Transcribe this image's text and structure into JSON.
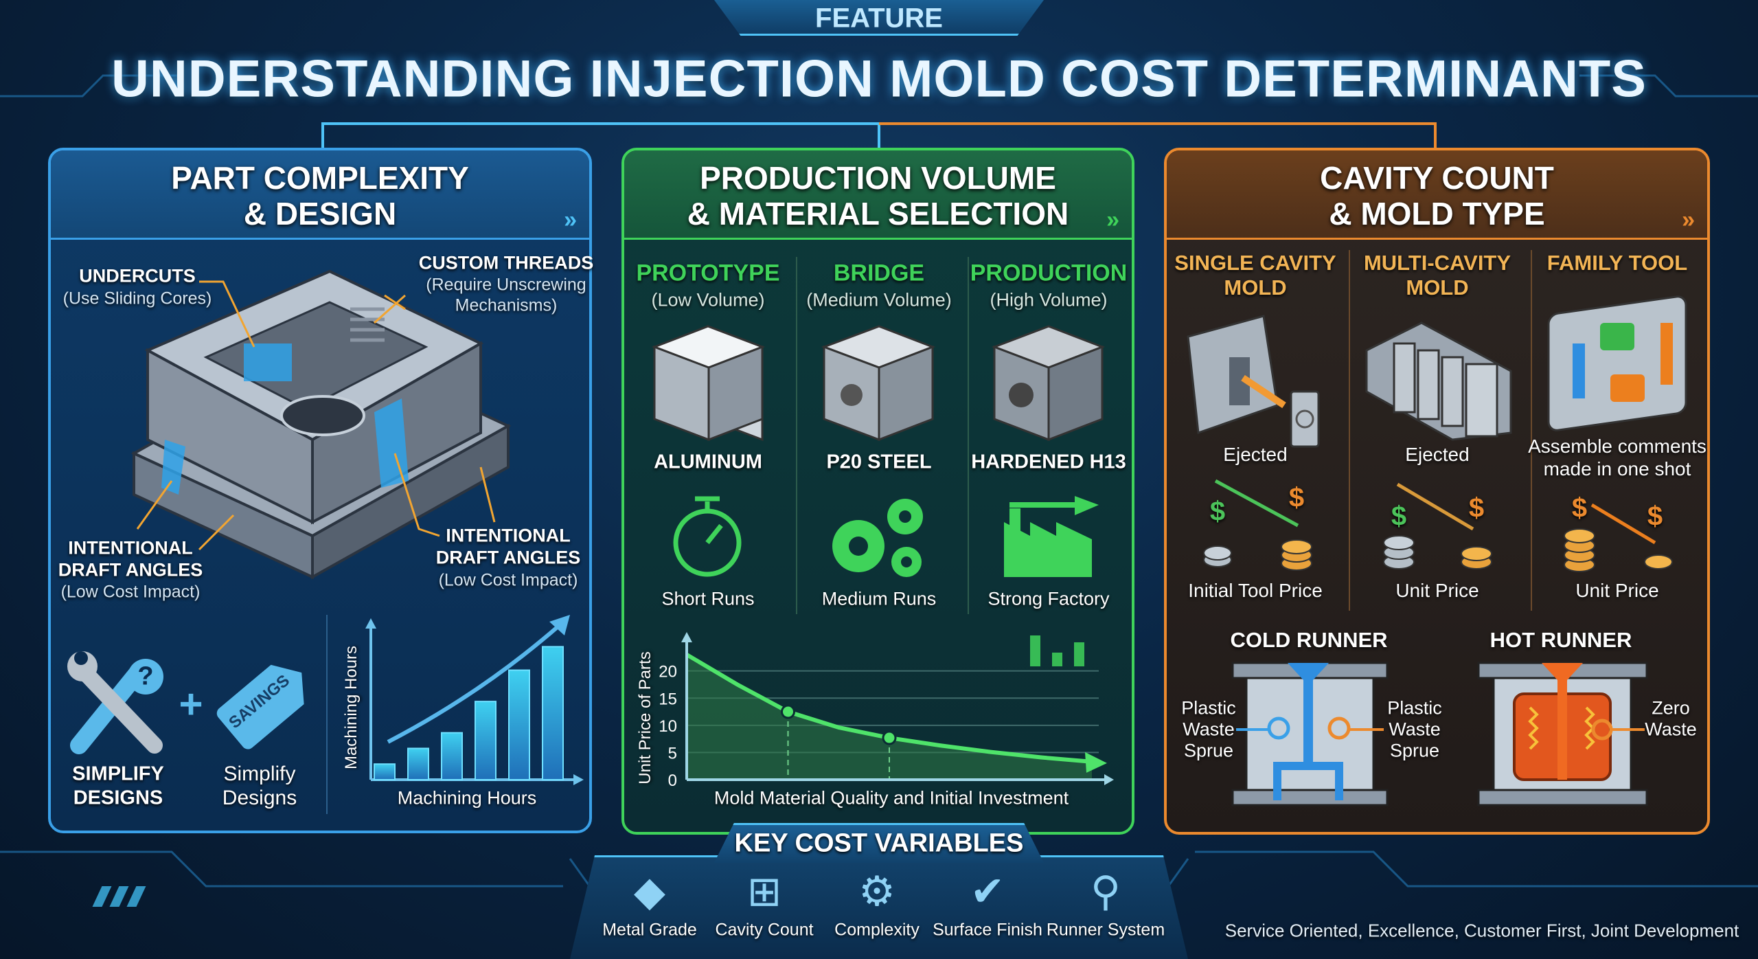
{
  "header": {
    "badge": "FEATURE",
    "title": "UNDERSTANDING INJECTION MOLD COST DETERMINANTS"
  },
  "colors": {
    "blue": "#3aa0e8",
    "green": "#3fd35a",
    "orange": "#ec8a2e",
    "gold": "#f2b455",
    "background": "#0a2645"
  },
  "design": {
    "title_line1": "PART COMPLEXITY",
    "title_line2": "& DESIGN",
    "chevron": "»",
    "undercuts": {
      "title": "UNDERCUTS",
      "sub": "(Use Sliding Cores)"
    },
    "threads": {
      "title": "CUSTOM THREADS",
      "sub1": "(Require Unscrewing",
      "sub2": "Mechanisms)"
    },
    "draft_left": {
      "line1": "INTENTIONAL",
      "line2": "DRAFT ANGLES",
      "sub": "(Low Cost Impact)"
    },
    "draft_right": {
      "line1": "INTENTIONAL",
      "line2": "DRAFT ANGLES",
      "sub": "(Low Cost Impact)"
    },
    "simplify_bold_1": "SIMPLIFY",
    "simplify_bold_2": "DESIGNS",
    "plus": "+",
    "tag_text": "SAVINGS",
    "question": "?",
    "simplify_sub_1": "Simplify",
    "simplify_sub_2": "Designs"
  },
  "volume": {
    "title_line1": "PRODUCTION VOLUME",
    "title_line2": "& MATERIAL SELECTION",
    "chevron": "»",
    "columns": [
      {
        "heading": "PROTOTYPE",
        "sub": "(Low Volume)",
        "material": "ALUMINUM",
        "icon": "stopwatch-icon",
        "run": "Short Runs"
      },
      {
        "heading": "BRIDGE",
        "sub": "(Medium Volume)",
        "material": "P20 STEEL",
        "icon": "gears-icon",
        "run": "Medium Runs"
      },
      {
        "heading": "PRODUCTION",
        "sub": "(High Volume)",
        "material": "HARDENED H13",
        "icon": "factory-icon",
        "run": "Strong Factory"
      }
    ]
  },
  "cavity": {
    "title_line1": "CAVITY COUNT",
    "title_line2": "& MOLD TYPE",
    "chevron": "»",
    "columns": [
      {
        "heading1": "SINGLE CAVITY",
        "heading2": "MOLD",
        "caption1": "Ejected",
        "caption2": "",
        "dollar": "$",
        "price": "Initial Tool Price"
      },
      {
        "heading1": "MULTI-CAVITY",
        "heading2": "MOLD",
        "caption1": "Ejected",
        "caption2": "",
        "dollar": "$",
        "price": "Unit Price"
      },
      {
        "heading1": "FAMILY TOOL",
        "heading2": "",
        "caption1": "Assemble comments",
        "caption2": "made in one shot",
        "dollar": "$",
        "price": "Unit Price"
      }
    ],
    "cold_runner": {
      "title": "COLD RUNNER",
      "left1": "Plastic",
      "left2": "Waste",
      "left3": "Sprue",
      "right1": "Plastic",
      "right2": "Waste",
      "right3": "Sprue"
    },
    "hot_runner": {
      "title": "HOT RUNNER",
      "right1": "Zero",
      "right2": "Waste"
    }
  },
  "footer": {
    "title": "KEY COST VARIABLES",
    "items": [
      {
        "label": "Metal Grade",
        "icon": "metal-ingot-icon"
      },
      {
        "label": "Cavity Count",
        "icon": "cavity-grid-icon"
      },
      {
        "label": "Complexity",
        "icon": "gear-icon"
      },
      {
        "label": "Surface Finish",
        "icon": "checkmark-icon"
      },
      {
        "label": "Runner System",
        "icon": "runner-tree-icon"
      }
    ],
    "tagline": "Service Oriented, Excellence, Customer First, Joint Development"
  },
  "chart_data": [
    {
      "type": "bar",
      "title": "",
      "xlabel": "Machining Hours",
      "ylabel": "Machining Hours",
      "values": [
        1,
        2,
        3,
        5,
        7,
        8.5
      ],
      "trend": "rising arrow",
      "grid": false
    },
    {
      "type": "area",
      "title": "",
      "xlabel": "Mold Material Quality and Initial Investment",
      "ylabel": "Unit Price of Parts",
      "y_ticks": [
        0,
        5,
        10,
        15,
        20
      ],
      "ylim": [
        0,
        24
      ],
      "values": [
        23,
        17.5,
        12.5,
        9.6,
        7.7,
        6.3,
        5.1,
        4.1,
        3.3
      ],
      "highlighted_points": [
        12.5,
        7.7
      ],
      "grid": true
    }
  ]
}
